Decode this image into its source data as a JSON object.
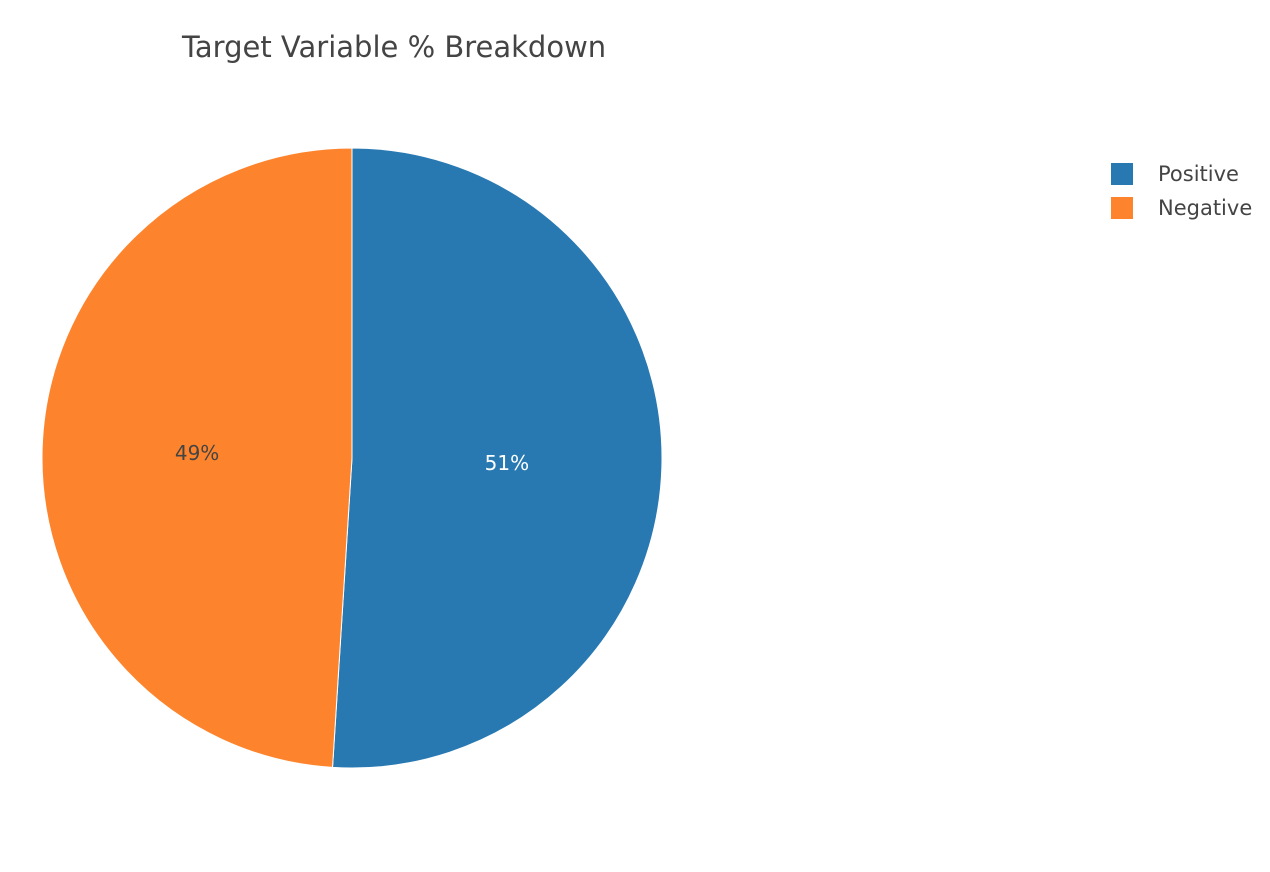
{
  "chart_data": {
    "type": "pie",
    "title": "Target Variable % Breakdown",
    "slices": [
      {
        "label": "Positive",
        "value": 51,
        "text": "51%",
        "color": "#2878b2",
        "text_color": "#ffffff"
      },
      {
        "label": "Negative",
        "value": 49,
        "text": "49%",
        "color": "#fd842c",
        "text_color": "#444444"
      }
    ],
    "legend": {
      "placement": "top-right",
      "entries": [
        "Positive",
        "Negative"
      ]
    }
  }
}
